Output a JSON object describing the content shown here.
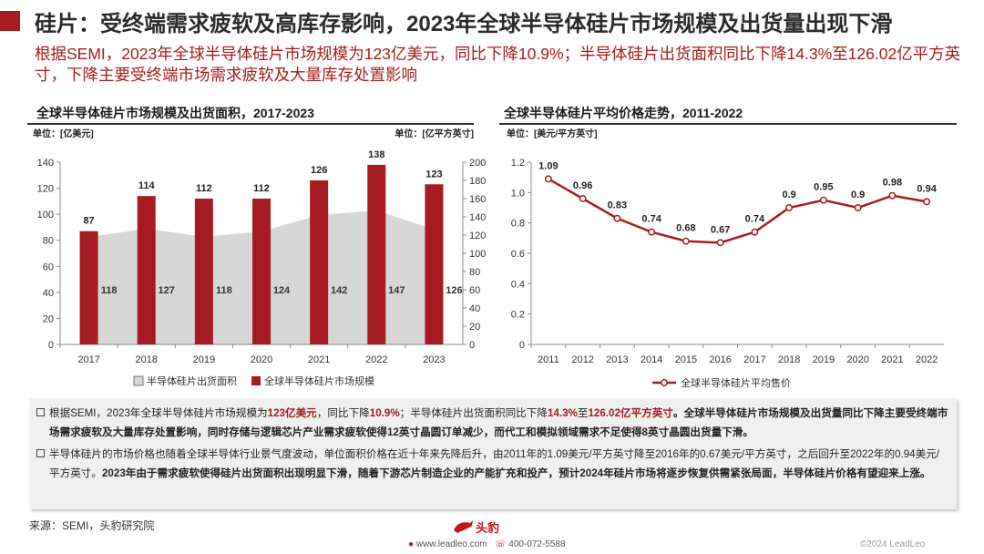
{
  "page": {
    "headline": "硅片：受终端需求疲软及高库存影响，2023年全球半导体硅片市场规模及出货量出现下滑",
    "subline": "根据SEMI，2023年全球半导体硅片市场规模为123亿美元，同比下降10.9%；半导体硅片出货面积同比下降14.3%至126.02亿平方英寸，下降主要受终端市场需求疲软及大量库存处置影响"
  },
  "colors": {
    "brand_red": "#a51b1f",
    "area_gray": "#d6d6d6",
    "text_dark": "#222222"
  },
  "chart_data": [
    {
      "type": "bar",
      "title": "全球半导体硅片市场规模及出货面积，2017-2023",
      "left_unit": "单位：[亿美元]",
      "right_unit": "单位：[亿平方英寸]",
      "categories": [
        "2017",
        "2018",
        "2019",
        "2020",
        "2021",
        "2022",
        "2023"
      ],
      "left_ylim": [
        0,
        140
      ],
      "left_ticks": [
        0,
        20,
        40,
        60,
        80,
        100,
        120,
        140
      ],
      "right_ylim": [
        0,
        200
      ],
      "right_ticks": [
        0,
        20,
        40,
        60,
        80,
        100,
        120,
        140,
        160,
        180,
        200
      ],
      "series": [
        {
          "name": "半导体硅片出货面积",
          "kind": "area",
          "axis": "right",
          "values": [
            118,
            127,
            118,
            124,
            142,
            147,
            126
          ]
        },
        {
          "name": "全球半导体硅片市场规模",
          "kind": "bar",
          "axis": "left",
          "values": [
            87,
            114,
            112,
            112,
            126,
            138,
            123
          ]
        }
      ],
      "legend": [
        "半导体硅片出货面积",
        "全球半导体硅片市场规模"
      ]
    },
    {
      "type": "line",
      "title": "全球半导体硅片平均价格走势，2011-2022",
      "unit": "单位：[美元/平方英寸]",
      "categories": [
        "2011",
        "2012",
        "2013",
        "2014",
        "2015",
        "2016",
        "2017",
        "2018",
        "2019",
        "2020",
        "2021",
        "2022"
      ],
      "ylim": [
        0,
        1.2
      ],
      "ticks": [
        "0",
        "0.2",
        "0.4",
        "0.6",
        "0.8",
        "1.0",
        "1.2"
      ],
      "series": [
        {
          "name": "全球半导体硅片平均售价",
          "values": [
            1.09,
            0.96,
            0.83,
            0.74,
            0.68,
            0.67,
            0.74,
            0.9,
            0.95,
            0.9,
            0.98,
            0.94
          ]
        }
      ],
      "legend": [
        "全球半导体硅片平均售价"
      ]
    }
  ],
  "notes": [
    [
      {
        "t": "根据SEMI，2023年全球半导体硅片市场规模为",
        "s": ""
      },
      {
        "t": "123亿美元",
        "s": "hl"
      },
      {
        "t": "，同比下降",
        "s": ""
      },
      {
        "t": "10.9%",
        "s": "hl"
      },
      {
        "t": "；半导体硅片出货面积同比下降",
        "s": ""
      },
      {
        "t": "14.3%",
        "s": "hl"
      },
      {
        "t": "至",
        "s": ""
      },
      {
        "t": "126.02亿平方英寸",
        "s": "hl"
      },
      {
        "t": "。全球半导体硅片市场规模及出货量同比下降主要受终端市场需求疲软及大量库存处置影响，同时存储与逻辑芯片产业需求疲软使得12英寸晶圆订单减少，而代工和模拟领域需求不足使得8英寸晶圆出货量下滑。",
        "s": "b"
      }
    ],
    [
      {
        "t": "半导体硅片的市场价格也随着全球半导体行业景气度波动，单位面积价格在近十年来先降后升，由2011年的1.09美元/平方英寸降至2016年的0.67美元/平方英寸，之后回升至2022年的0.94美元/平方英寸。",
        "s": ""
      },
      {
        "t": "2023年由于需求疲软使得硅片出货面积出现明显下滑，随着下游芯片制造企业的产能扩充和投产，预计2024年硅片市场将逐步恢复供需紧张局面，半导体硅片价格有望迎来上涨。",
        "s": "b"
      }
    ]
  ],
  "footer": {
    "source": "来源：SEMI，头豹研究院",
    "logo_text": "头豹",
    "logo_sub": "LeadLeo",
    "website": "www.leadleo.com",
    "phone": "400-072-5588",
    "copyright": "©2024 LeadLeo"
  }
}
